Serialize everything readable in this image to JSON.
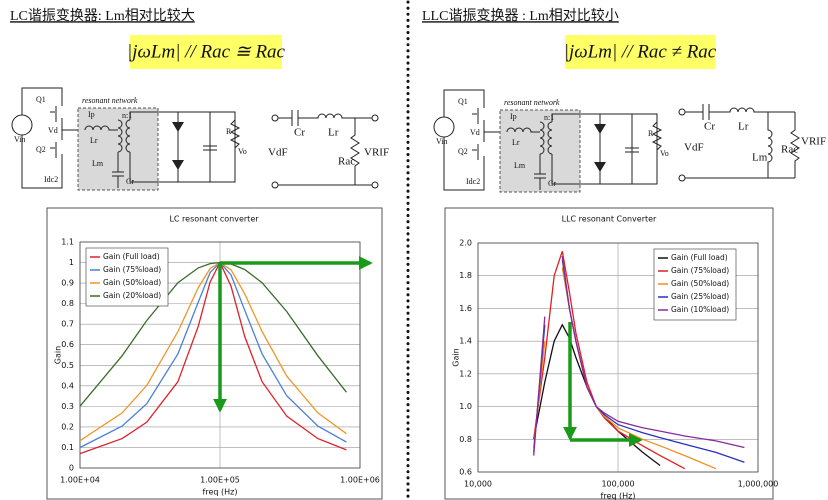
{
  "panels": [
    {
      "heading": "LC谐振变换器: Lm相对比较大",
      "formula": "|jωLm| // Rac ≅ Rac",
      "circuit_labels": [
        "Vin",
        "Q1",
        "Q2",
        "Vd",
        "resonant network",
        "Ip",
        "Lr",
        "Lm",
        "Cr",
        "n:1",
        "Idc2",
        "R",
        "Vo"
      ],
      "equivalent_labels": [
        "Cr",
        "Lr",
        "Rac",
        "VdF",
        "VRIF"
      ]
    },
    {
      "heading": "LLC谐振变换器 : Lm相对比较小",
      "formula": "|jωLm| // Rac ≠ Rac",
      "circuit_labels": [
        "Vin",
        "Q1",
        "Q2",
        "Vd",
        "resonant network",
        "Ip",
        "Lr",
        "Lm",
        "Cr",
        "n:1",
        "Idc2",
        "R",
        "Vo"
      ],
      "equivalent_labels": [
        "Cr",
        "Lr",
        "Lm",
        "Rac",
        "VdF",
        "VRIF"
      ]
    }
  ],
  "chart_data": [
    {
      "type": "line",
      "title": "LC resonant converter",
      "x_label": "freq (Hz)",
      "y_label": "Gain",
      "x_log": true,
      "grid": true,
      "legend": "upper left",
      "xlim": [
        10000,
        1000000
      ],
      "xticks": [
        {
          "value": 10000,
          "label": "1.00E+04"
        },
        {
          "value": 100000,
          "label": "1.00E+05"
        },
        {
          "value": 1000000,
          "label": "1.00E+06"
        }
      ],
      "ylim": [
        0,
        1.1
      ],
      "yticks": [
        0,
        0.1,
        0.2,
        0.3,
        0.4,
        0.5,
        0.6,
        0.7,
        0.8,
        0.9,
        1,
        1.1
      ],
      "x": [
        10000,
        20000,
        30000,
        50000,
        70000,
        85000,
        100000,
        120000,
        150000,
        200000,
        300000,
        500000,
        800000
      ],
      "series": [
        {
          "name": "Gain (Full load)",
          "color": "#e0202a",
          "values": [
            0.07,
            0.143,
            0.223,
            0.42,
            0.69,
            0.905,
            1,
            0.884,
            0.64,
            0.42,
            0.252,
            0.143,
            0.088
          ]
        },
        {
          "name": "Gain (75%load)",
          "color": "#4a7fd6",
          "values": [
            0.1,
            0.204,
            0.313,
            0.555,
            0.808,
            0.951,
            1,
            0.939,
            0.768,
            0.555,
            0.351,
            0.204,
            0.126
          ]
        },
        {
          "name": "Gain (50%load)",
          "color": "#f0962a",
          "values": [
            0.133,
            0.268,
            0.402,
            0.664,
            0.878,
            0.971,
            1,
            0.964,
            0.848,
            0.664,
            0.447,
            0.268,
            0.167
          ]
        },
        {
          "name": "Gain (20%load)",
          "color": "#3a6b2a",
          "values": [
            0.301,
            0.546,
            0.718,
            0.902,
            0.974,
            0.995,
            1,
            0.993,
            0.966,
            0.902,
            0.761,
            0.546,
            0.369
          ]
        }
      ]
    },
    {
      "type": "line",
      "title": "LLC resonant Converter",
      "x_label": "freq (Hz)",
      "y_label": "Gain",
      "x_log": true,
      "grid": true,
      "legend": "upper right",
      "xlim": [
        10000,
        1000000
      ],
      "xticks": [
        {
          "value": 10000,
          "label": "10,000"
        },
        {
          "value": 100000,
          "label": "100,000"
        },
        {
          "value": 1000000,
          "label": "1,000,000"
        }
      ],
      "ylim": [
        0.6,
        2
      ],
      "yticks": [
        0.6,
        0.8,
        {
          "value": 1,
          "label": "1.0"
        },
        1.2,
        1.4,
        1.6,
        1.8,
        {
          "value": 2,
          "label": "2.0"
        }
      ],
      "x": [
        25000,
        30000,
        35000,
        40000,
        45000,
        50000,
        60000,
        70000,
        80000,
        100000,
        150000,
        200000,
        300000,
        500000,
        800000
      ],
      "series": [
        {
          "name": "Gain (Full load)",
          "color": "#111111",
          "values": [
            0.8,
            1.15,
            1.4,
            1.5,
            1.42,
            1.3,
            1.12,
            1.0,
            0.94,
            0.85,
            0.72,
            0.64,
            null,
            null,
            null
          ]
        },
        {
          "name": "Gain (75%load)",
          "color": "#e02020",
          "values": [
            0.8,
            1.3,
            1.8,
            1.95,
            1.7,
            1.45,
            1.15,
            1.0,
            0.93,
            0.85,
            0.76,
            0.7,
            0.62,
            null,
            null
          ]
        },
        {
          "name": "Gain (50%load)",
          "color": "#f09020",
          "values": [
            0.75,
            1.4,
            null,
            1.85,
            1.6,
            1.4,
            1.12,
            1.0,
            0.94,
            0.87,
            0.8,
            0.76,
            0.7,
            0.62,
            null
          ]
        },
        {
          "name": "Gain (25%load)",
          "color": "#2a30c0",
          "values": [
            0.72,
            1.5,
            null,
            1.9,
            1.6,
            1.4,
            1.12,
            1.0,
            0.95,
            0.89,
            0.84,
            0.81,
            0.77,
            0.72,
            0.66
          ]
        },
        {
          "name": "Gain (10%load)",
          "color": "#8a2a9a",
          "values": [
            0.7,
            1.55,
            null,
            1.92,
            1.6,
            1.4,
            1.12,
            1.0,
            0.96,
            0.91,
            0.87,
            0.85,
            0.82,
            0.79,
            0.75
          ]
        }
      ]
    }
  ]
}
